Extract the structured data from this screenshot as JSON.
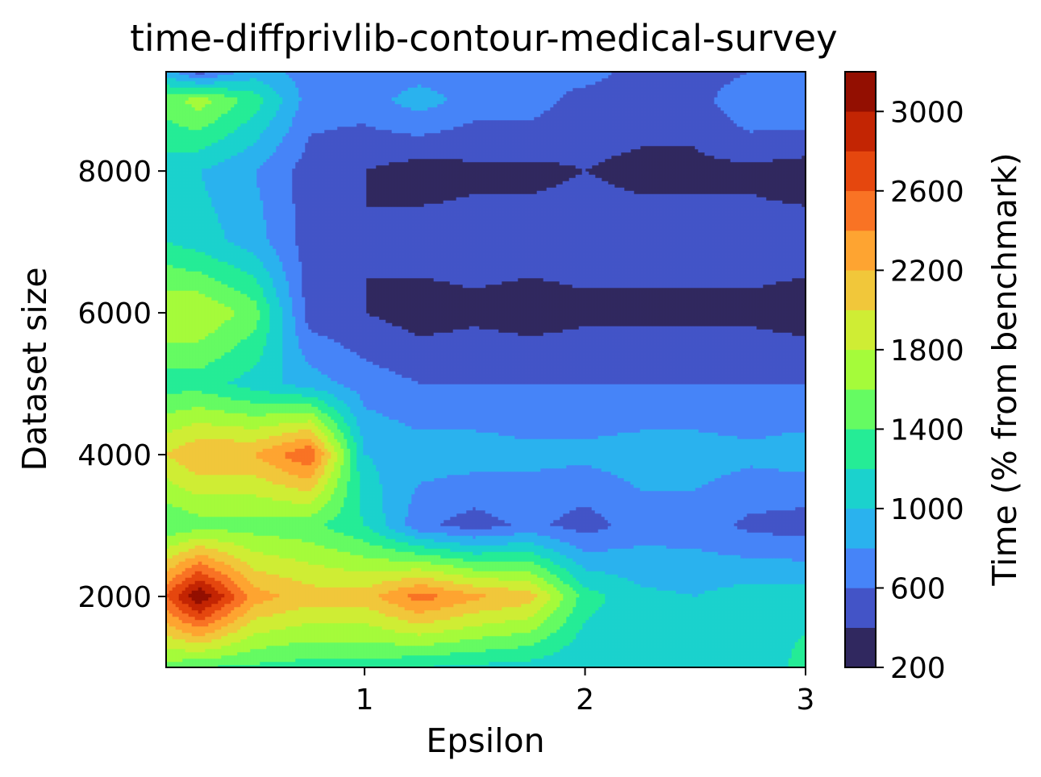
{
  "chart_data": {
    "type": "contour",
    "title": "time-diffprivlib-contour-medical-survey",
    "xlabel": "Epsilon",
    "ylabel": "Dataset size",
    "xlim": [
      0.1,
      3.0
    ],
    "ylim": [
      1000,
      9400
    ],
    "xticks": [
      "1",
      "2",
      "3"
    ],
    "xtick_values": [
      1,
      2,
      3
    ],
    "yticks": [
      "2000",
      "4000",
      "6000",
      "8000"
    ],
    "ytick_values": [
      2000,
      4000,
      6000,
      8000
    ],
    "colorbar": {
      "label": "Time (% from benchmark)",
      "ticks": [
        "200",
        "600",
        "1000",
        "1400",
        "1800",
        "2200",
        "2600",
        "3000"
      ],
      "tick_values": [
        200,
        600,
        1000,
        1400,
        1800,
        2200,
        2600,
        3000
      ],
      "range": [
        200,
        3200
      ],
      "levels": [
        200,
        400,
        600,
        800,
        1000,
        1200,
        1400,
        1600,
        1800,
        2000,
        2200,
        2400,
        2600,
        2800,
        3000,
        3200
      ],
      "colors": [
        "#30285f",
        "#4354c7",
        "#4684f8",
        "#2ab2ee",
        "#1bd2cd",
        "#25ec96",
        "#65fb62",
        "#a5fb3a",
        "#cfed34",
        "#f1c73a",
        "#fea431",
        "#f97324",
        "#e5470e",
        "#c32503",
        "#930f01"
      ],
      "colormap": "turbo"
    },
    "x": [
      0.1,
      0.25,
      0.5,
      0.75,
      1.0,
      1.25,
      1.5,
      1.75,
      2.0,
      2.25,
      2.5,
      2.75,
      3.0
    ],
    "y": [
      1000,
      2000,
      3000,
      4000,
      5000,
      6000,
      7000,
      8000,
      9000,
      9400
    ],
    "z": [
      [
        1500,
        1400,
        1350,
        1300,
        1300,
        1200,
        1150,
        1100,
        1000,
        1000,
        1000,
        1000,
        1300
      ],
      [
        2600,
        3200,
        2300,
        2100,
        2100,
        2500,
        2250,
        2100,
        1300,
        1050,
        1000,
        1100,
        1100
      ],
      [
        1400,
        1500,
        1500,
        1450,
        1200,
        650,
        500,
        650,
        500,
        700,
        700,
        550,
        500
      ],
      [
        2000,
        2200,
        2200,
        2600,
        1000,
        900,
        900,
        850,
        850,
        900,
        900,
        850,
        900
      ],
      [
        1300,
        1300,
        1100,
        900,
        700,
        600,
        600,
        600,
        600,
        600,
        600,
        600,
        600
      ],
      [
        1800,
        1800,
        1500,
        500,
        400,
        300,
        350,
        300,
        350,
        350,
        350,
        350,
        300
      ],
      [
        1200,
        1100,
        900,
        500,
        400,
        500,
        500,
        500,
        500,
        500,
        500,
        500,
        500
      ],
      [
        1100,
        1000,
        800,
        500,
        400,
        300,
        350,
        350,
        400,
        350,
        350,
        350,
        300
      ],
      [
        1500,
        1700,
        1300,
        700,
        700,
        900,
        700,
        700,
        500,
        500,
        500,
        800,
        800
      ],
      [
        900,
        500,
        900,
        700,
        700,
        700,
        700,
        700,
        700,
        500,
        450,
        600,
        700
      ]
    ]
  }
}
